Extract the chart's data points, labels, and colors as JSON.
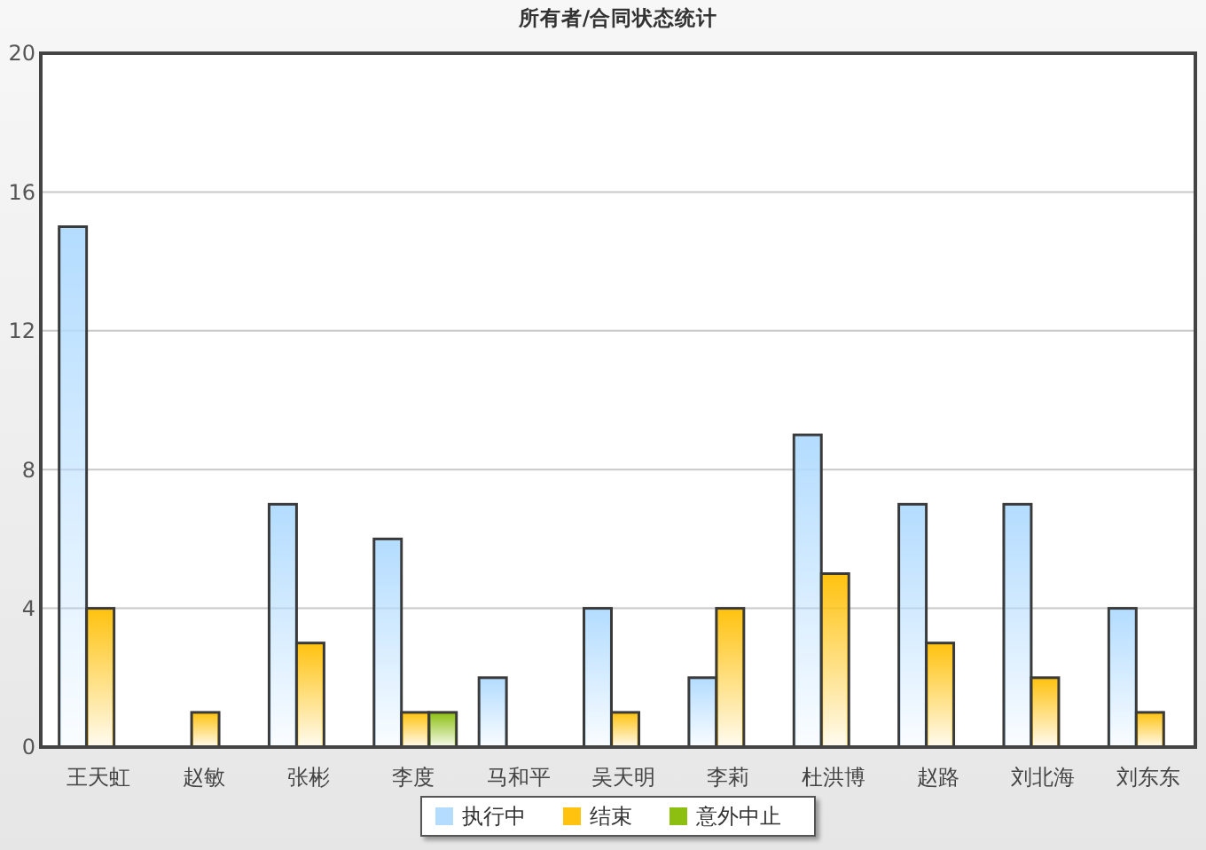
{
  "chart_data": {
    "type": "bar",
    "title": "所有者/合同状态统计",
    "categories": [
      "王天虹",
      "赵敏",
      "张彬",
      "李度",
      "马和平",
      "吴天明",
      "李莉",
      "杜洪博",
      "赵路",
      "刘北海",
      "刘东东"
    ],
    "series": [
      {
        "name": "执行中",
        "color": "#b3dcff",
        "values": [
          15,
          0,
          7,
          6,
          2,
          4,
          2,
          9,
          7,
          7,
          4
        ]
      },
      {
        "name": "结束",
        "color": "#ffc20e",
        "values": [
          4,
          1,
          3,
          1,
          0,
          1,
          4,
          5,
          3,
          2,
          1
        ]
      },
      {
        "name": "意外中止",
        "color": "#8cbf10",
        "values": [
          0,
          0,
          0,
          1,
          0,
          0,
          0,
          0,
          0,
          0,
          0
        ]
      }
    ],
    "ylim": [
      0,
      20
    ],
    "yticks": [
      0,
      4,
      8,
      12,
      16,
      20
    ],
    "grid": "y",
    "legend": "bottom"
  }
}
